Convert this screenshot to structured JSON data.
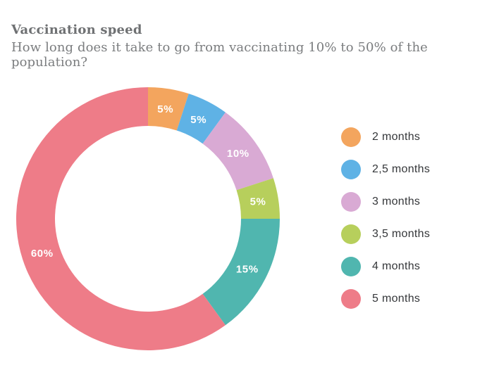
{
  "header": {
    "title": "Vaccination speed",
    "subtitle": "How long does it take to go from vaccinating 10% to 50% of the population?"
  },
  "chart_data": {
    "type": "pie",
    "variant": "donut",
    "title": "Vaccination speed",
    "subtitle": "How long does it take to go from vaccinating 10% to 50% of the population?",
    "unit": "%",
    "categories": [
      "2 months",
      "2,5 months",
      "3 months",
      "3,5 months",
      "4 months",
      "5 months"
    ],
    "values": [
      5,
      5,
      10,
      5,
      15,
      60
    ],
    "slice_labels": [
      "5%",
      "5%",
      "10%",
      "5%",
      "15%",
      "60%"
    ],
    "colors": [
      "#F3A55E",
      "#5FB2E5",
      "#D9AAD4",
      "#B7CF5C",
      "#50B6AF",
      "#EE7C88"
    ],
    "start_angle_deg": 0,
    "direction": "clockwise",
    "legend_position": "right",
    "label_text_color": "#ffffff"
  },
  "legend": {
    "items": [
      {
        "label": "2 months",
        "color": "#F3A55E"
      },
      {
        "label": "2,5 months",
        "color": "#5FB2E5"
      },
      {
        "label": "3 months",
        "color": "#D9AAD4"
      },
      {
        "label": "3,5 months",
        "color": "#B7CF5C"
      },
      {
        "label": "4 months",
        "color": "#50B6AF"
      },
      {
        "label": "5 months",
        "color": "#EE7C88"
      }
    ]
  }
}
